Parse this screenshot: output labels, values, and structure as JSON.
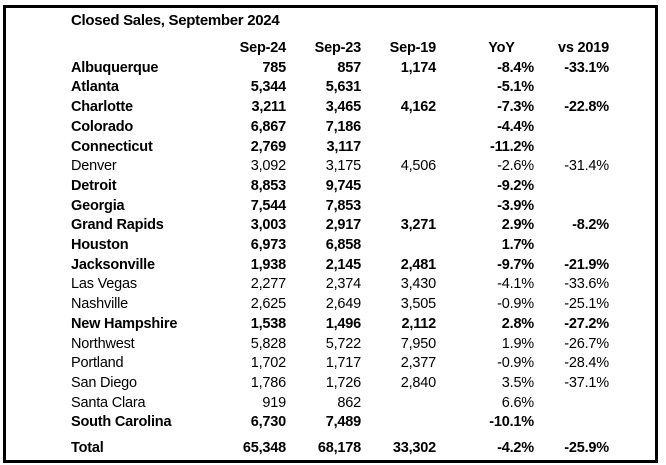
{
  "title": "Closed Sales, September 2024",
  "columns": [
    "",
    "Sep-24",
    "Sep-23",
    "Sep-19",
    "YoY",
    "vs 2019"
  ],
  "rows": [
    {
      "name": "Albuquerque",
      "sep24": "785",
      "sep23": "857",
      "sep19": "1,174",
      "yoy": "-8.4%",
      "vs2019": "-33.1%",
      "bold": true
    },
    {
      "name": "Atlanta",
      "sep24": "5,344",
      "sep23": "5,631",
      "sep19": "",
      "yoy": "-5.1%",
      "vs2019": "",
      "bold": true
    },
    {
      "name": "Charlotte",
      "sep24": "3,211",
      "sep23": "3,465",
      "sep19": "4,162",
      "yoy": "-7.3%",
      "vs2019": "-22.8%",
      "bold": true
    },
    {
      "name": "Colorado",
      "sep24": "6,867",
      "sep23": "7,186",
      "sep19": "",
      "yoy": "-4.4%",
      "vs2019": "",
      "bold": true
    },
    {
      "name": "Connecticut",
      "sep24": "2,769",
      "sep23": "3,117",
      "sep19": "",
      "yoy": "-11.2%",
      "vs2019": "",
      "bold": true
    },
    {
      "name": "Denver",
      "sep24": "3,092",
      "sep23": "3,175",
      "sep19": "4,506",
      "yoy": "-2.6%",
      "vs2019": "-31.4%",
      "bold": false
    },
    {
      "name": "Detroit",
      "sep24": "8,853",
      "sep23": "9,745",
      "sep19": "",
      "yoy": "-9.2%",
      "vs2019": "",
      "bold": true
    },
    {
      "name": "Georgia",
      "sep24": "7,544",
      "sep23": "7,853",
      "sep19": "",
      "yoy": "-3.9%",
      "vs2019": "",
      "bold": true
    },
    {
      "name": "Grand Rapids",
      "sep24": "3,003",
      "sep23": "2,917",
      "sep19": "3,271",
      "yoy": "2.9%",
      "vs2019": "-8.2%",
      "bold": true
    },
    {
      "name": "Houston",
      "sep24": "6,973",
      "sep23": "6,858",
      "sep19": "",
      "yoy": "1.7%",
      "vs2019": "",
      "bold": true
    },
    {
      "name": "Jacksonville",
      "sep24": "1,938",
      "sep23": "2,145",
      "sep19": "2,481",
      "yoy": "-9.7%",
      "vs2019": "-21.9%",
      "bold": true
    },
    {
      "name": "Las Vegas",
      "sep24": "2,277",
      "sep23": "2,374",
      "sep19": "3,430",
      "yoy": "-4.1%",
      "vs2019": "-33.6%",
      "bold": false
    },
    {
      "name": "Nashville",
      "sep24": "2,625",
      "sep23": "2,649",
      "sep19": "3,505",
      "yoy": "-0.9%",
      "vs2019": "-25.1%",
      "bold": false
    },
    {
      "name": "New Hampshire",
      "sep24": "1,538",
      "sep23": "1,496",
      "sep19": "2,112",
      "yoy": "2.8%",
      "vs2019": "-27.2%",
      "bold": true
    },
    {
      "name": "Northwest",
      "sep24": "5,828",
      "sep23": "5,722",
      "sep19": "7,950",
      "yoy": "1.9%",
      "vs2019": "-26.7%",
      "bold": false
    },
    {
      "name": "Portland",
      "sep24": "1,702",
      "sep23": "1,717",
      "sep19": "2,377",
      "yoy": "-0.9%",
      "vs2019": "-28.4%",
      "bold": false
    },
    {
      "name": "San Diego",
      "sep24": "1,786",
      "sep23": "1,726",
      "sep19": "2,840",
      "yoy": "3.5%",
      "vs2019": "-37.1%",
      "bold": false
    },
    {
      "name": "Santa Clara",
      "sep24": "919",
      "sep23": "862",
      "sep19": "",
      "yoy": "6.6%",
      "vs2019": "",
      "bold": false
    },
    {
      "name": "South Carolina",
      "sep24": "6,730",
      "sep23": "7,489",
      "sep19": "",
      "yoy": "-10.1%",
      "vs2019": "",
      "bold": true
    }
  ],
  "total": {
    "name": "Total",
    "sep24": "65,348",
    "sep23": "68,178",
    "sep19": "33,302",
    "yoy": "-4.2%",
    "vs2019": "-25.9%"
  }
}
